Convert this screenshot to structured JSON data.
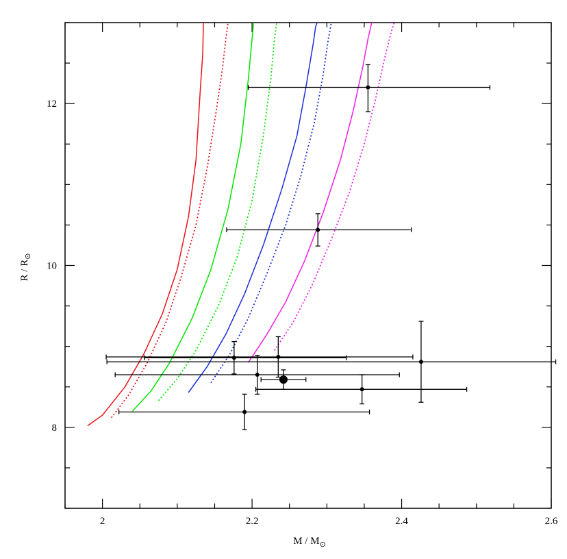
{
  "chart_data": {
    "type": "scatter",
    "title": "",
    "xlabel": "M / M",
    "ylabel": "R / R",
    "xlabel_subscript_symbol": "⊙",
    "ylabel_subscript_symbol": "⊙",
    "xlim": [
      1.95,
      2.6
    ],
    "ylim": [
      7.0,
      13.0
    ],
    "xticks": [
      2.0,
      2.2,
      2.4,
      2.6
    ],
    "xtick_labels": [
      "2",
      "2.2",
      "2.4",
      "2.6"
    ],
    "yticks": [
      8,
      10,
      12
    ],
    "ytick_labels": [
      "8",
      "10",
      "12"
    ],
    "x_minor_step": 0.05,
    "y_minor_step": 0.5,
    "grid": false,
    "colors": {
      "red": "#e8141c",
      "green": "#00e600",
      "blue": "#1a2ed8",
      "magenta": "#ee1ee6",
      "points": "#000000"
    },
    "series": [
      {
        "color": "red",
        "style": "solid",
        "x": [
          1.98,
          2.0,
          2.03,
          2.055,
          2.08,
          2.1,
          2.115,
          2.125,
          2.131,
          2.134,
          2.135
        ],
        "y": [
          8.02,
          8.15,
          8.5,
          8.9,
          9.4,
          9.95,
          10.6,
          11.3,
          12.2,
          12.6,
          13.0
        ]
      },
      {
        "color": "red",
        "style": "dotted",
        "x": [
          2.012,
          2.035,
          2.06,
          2.085,
          2.105,
          2.125,
          2.14,
          2.152,
          2.16,
          2.165,
          2.168
        ],
        "y": [
          8.12,
          8.4,
          8.8,
          9.3,
          9.85,
          10.5,
          11.2,
          11.9,
          12.4,
          12.8,
          13.0
        ]
      },
      {
        "color": "green",
        "style": "solid",
        "x": [
          2.04,
          2.065,
          2.09,
          2.12,
          2.145,
          2.168,
          2.185,
          2.195,
          2.2,
          2.202
        ],
        "y": [
          8.2,
          8.45,
          8.8,
          9.35,
          9.95,
          10.7,
          11.5,
          12.3,
          12.8,
          13.0
        ]
      },
      {
        "color": "green",
        "style": "dotted",
        "x": [
          2.075,
          2.1,
          2.125,
          2.155,
          2.18,
          2.2,
          2.215,
          2.225,
          2.23,
          2.233
        ],
        "y": [
          8.33,
          8.6,
          8.95,
          9.5,
          10.1,
          10.8,
          11.6,
          12.3,
          12.8,
          13.0
        ]
      },
      {
        "color": "blue",
        "style": "solid",
        "x": [
          2.115,
          2.14,
          2.165,
          2.19,
          2.215,
          2.24,
          2.26,
          2.272,
          2.282,
          2.285,
          2.287
        ],
        "y": [
          8.43,
          8.75,
          9.15,
          9.65,
          10.25,
          10.95,
          11.6,
          12.2,
          12.75,
          12.95,
          13.0
        ]
      },
      {
        "color": "blue",
        "style": "dotted",
        "x": [
          2.145,
          2.17,
          2.195,
          2.22,
          2.245,
          2.265,
          2.283,
          2.295,
          2.302,
          2.306
        ],
        "y": [
          8.55,
          8.9,
          9.35,
          9.9,
          10.5,
          11.1,
          11.75,
          12.35,
          12.8,
          13.0
        ]
      },
      {
        "color": "magenta",
        "style": "solid",
        "x": [
          2.195,
          2.22,
          2.245,
          2.27,
          2.295,
          2.318,
          2.335,
          2.348,
          2.355,
          2.36
        ],
        "y": [
          8.8,
          9.15,
          9.55,
          10.05,
          10.65,
          11.3,
          11.9,
          12.45,
          12.8,
          13.0
        ]
      },
      {
        "color": "magenta",
        "style": "dotted",
        "x": [
          2.23,
          2.255,
          2.28,
          2.305,
          2.33,
          2.35,
          2.365,
          2.377,
          2.385,
          2.39
        ],
        "y": [
          8.95,
          9.3,
          9.75,
          10.3,
          10.9,
          11.5,
          12.05,
          12.55,
          12.85,
          13.0
        ]
      }
    ],
    "points": [
      {
        "x": 2.355,
        "y": 12.2,
        "xerr": [
          0.16,
          0.163
        ],
        "yerr": [
          0.3,
          0.28
        ]
      },
      {
        "x": 2.288,
        "y": 10.44,
        "xerr": [
          0.122,
          0.125
        ],
        "yerr": [
          0.2,
          0.2
        ]
      },
      {
        "x": 2.176,
        "y": 8.86,
        "xerr": [
          0.12,
          0.15
        ],
        "yerr": [
          0.2,
          0.2
        ]
      },
      {
        "x": 2.235,
        "y": 8.87,
        "xerr": [
          0.23,
          0.18
        ],
        "yerr": [
          0.25,
          0.25
        ]
      },
      {
        "x": 2.426,
        "y": 8.81,
        "xerr": [
          0.42,
          0.18
        ],
        "yerr": [
          0.5,
          0.5
        ]
      },
      {
        "x": 2.207,
        "y": 8.65,
        "xerr": [
          0.19,
          0.19
        ],
        "yerr": [
          0.24,
          0.24
        ]
      },
      {
        "x": 2.242,
        "y": 8.59,
        "xerr": [
          0.03,
          0.03
        ],
        "yerr": [
          0.12,
          0.12
        ],
        "large": true
      },
      {
        "x": 2.347,
        "y": 8.47,
        "xerr": [
          0.142,
          0.14
        ],
        "yerr": [
          0.18,
          0.18
        ]
      },
      {
        "x": 2.19,
        "y": 8.19,
        "xerr": [
          0.168,
          0.167
        ],
        "yerr": [
          0.22,
          0.22
        ]
      }
    ]
  }
}
